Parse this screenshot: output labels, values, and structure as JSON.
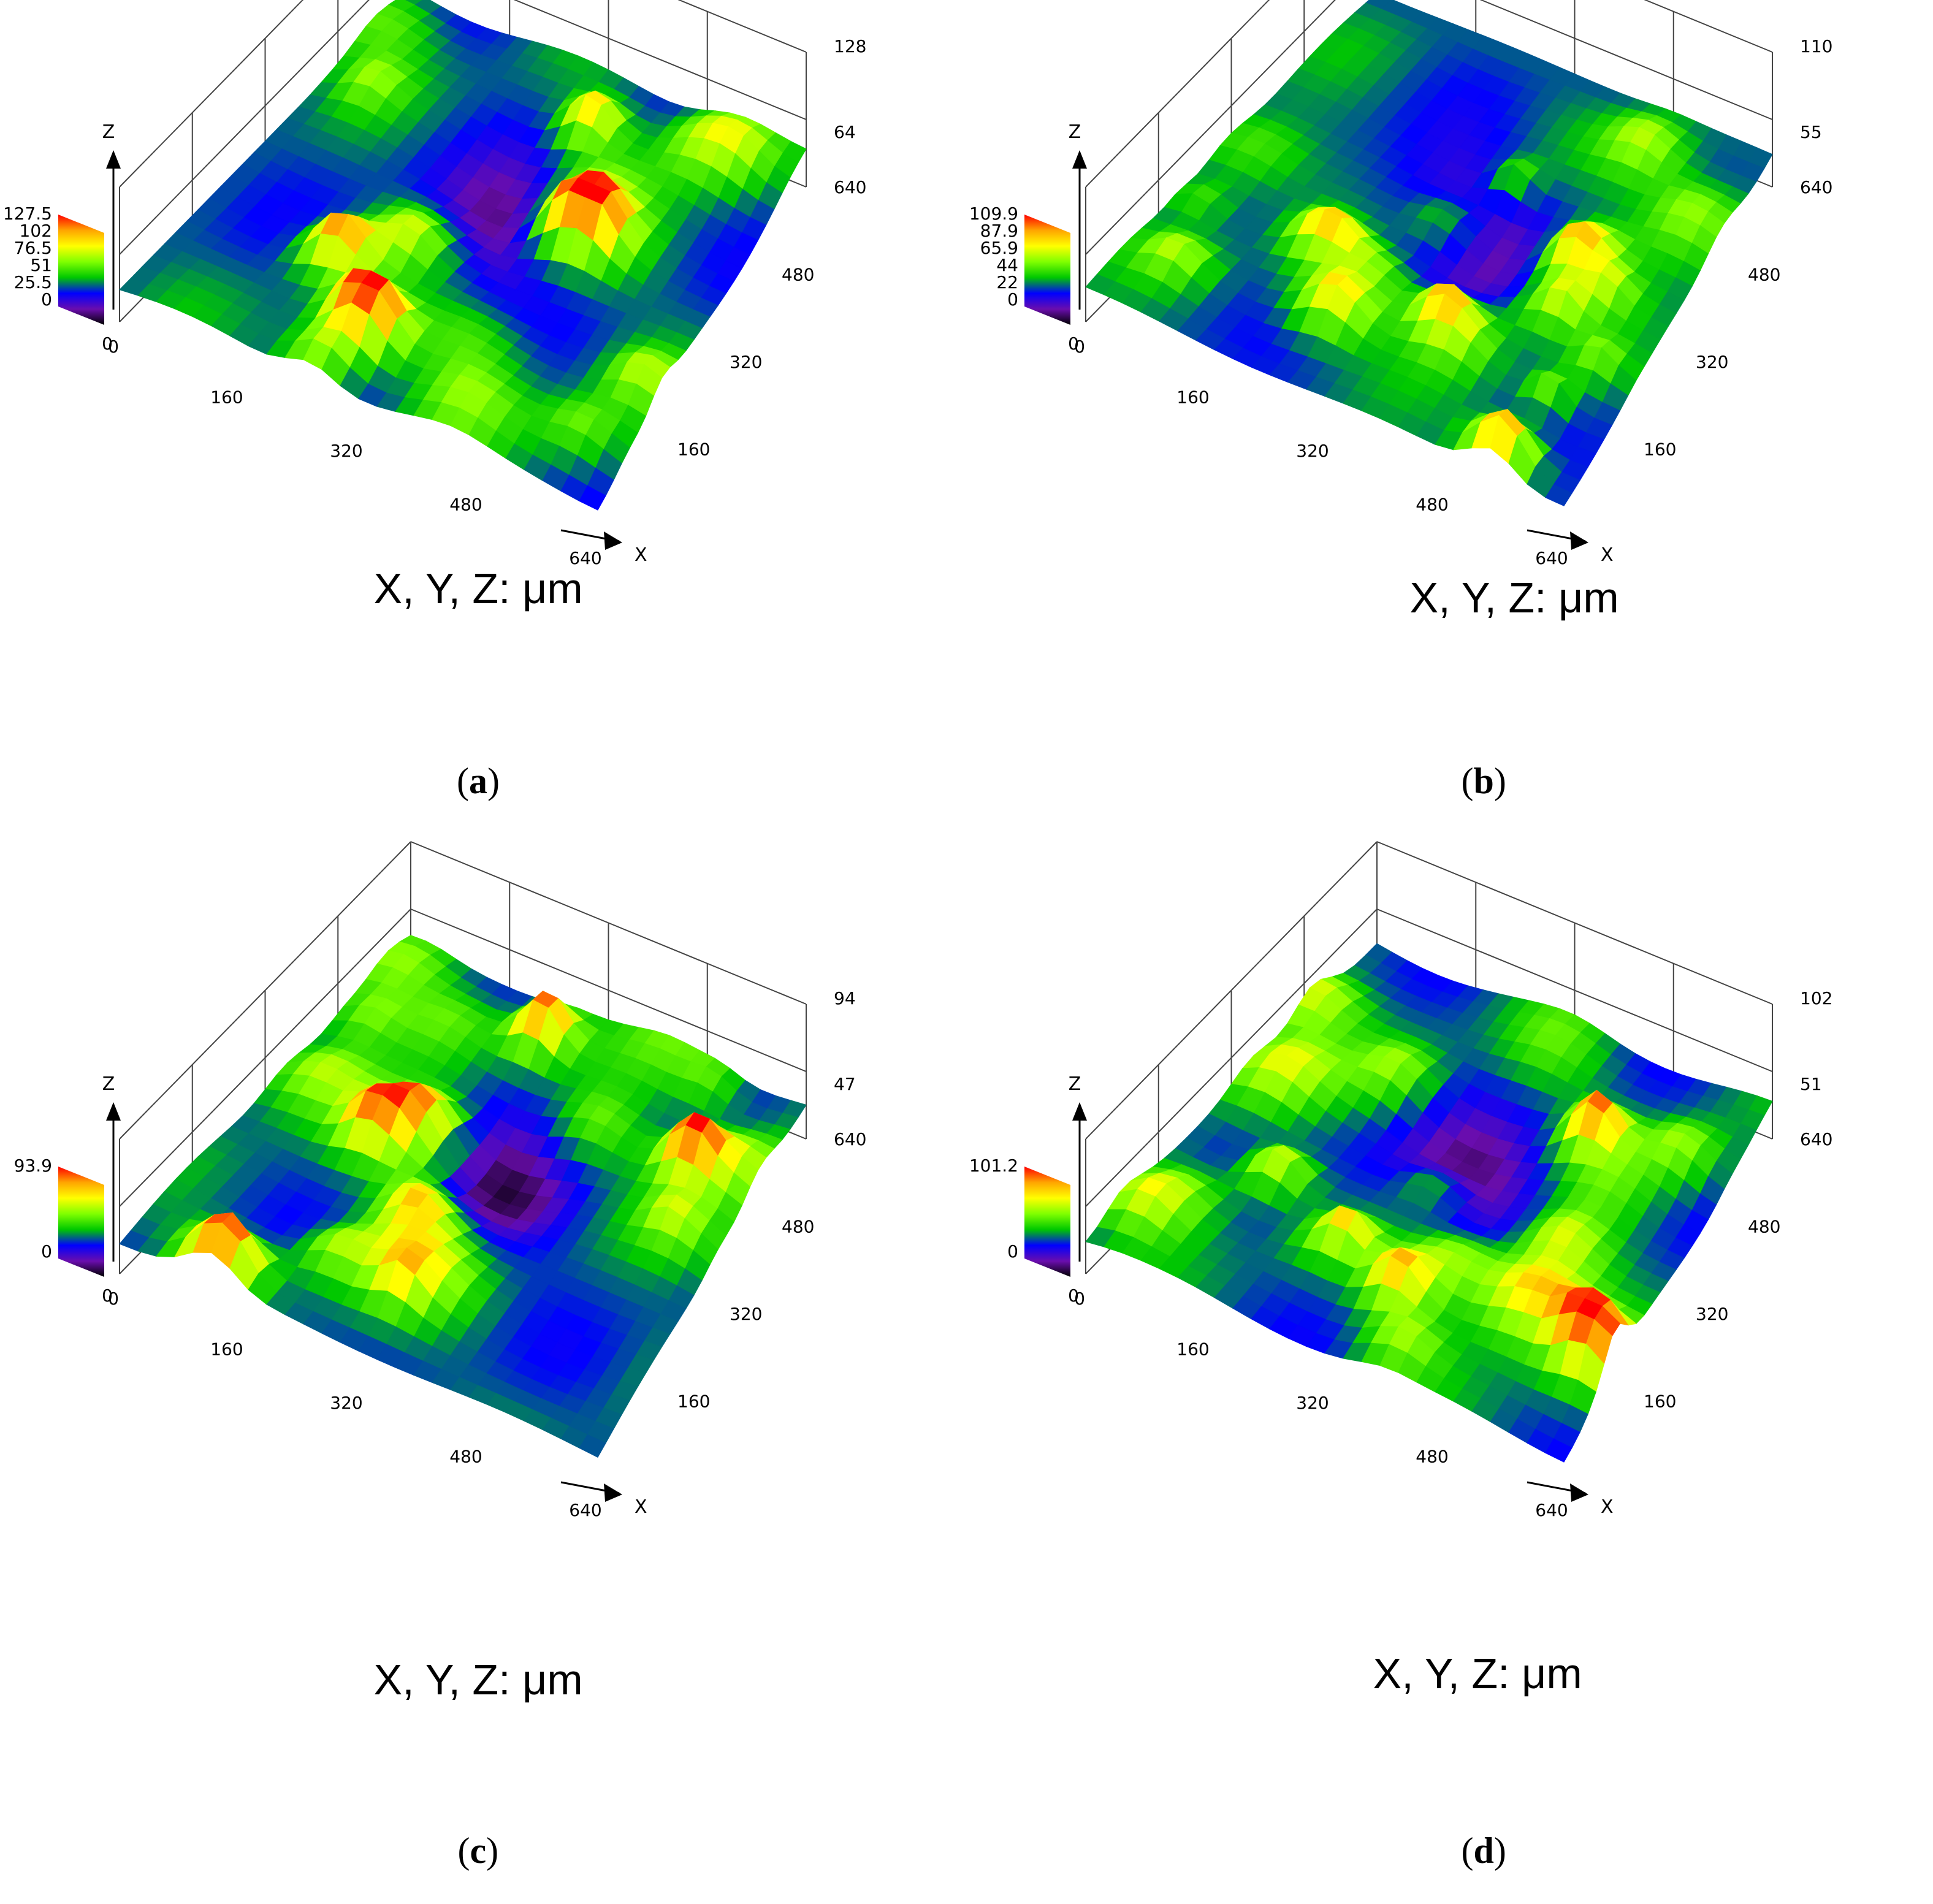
{
  "chart_data": [
    {
      "type": "surface",
      "caption": "a",
      "units_label": "X, Y, Z: μm",
      "x_axis": {
        "label": "X",
        "ticks": [
          "0",
          "160",
          "320",
          "480",
          "640"
        ]
      },
      "y_axis": {
        "ticks": [
          "160",
          "320",
          "480",
          "640"
        ]
      },
      "z_axis": {
        "label": "Z",
        "ticks": [
          "64",
          "128"
        ]
      },
      "colorbar": {
        "labels": [
          "127.5",
          "102",
          "76.5",
          "51",
          "25.5",
          "0"
        ]
      },
      "colors": [
        "#ff0000",
        "#ffa500",
        "#ffff00",
        "#7fff00",
        "#00c800",
        "#0000ff",
        "#6a0dad",
        "#000000"
      ],
      "peaks": [
        [
          0.3,
          0.3,
          0.8
        ],
        [
          0.45,
          0.15,
          0.9
        ],
        [
          0.55,
          0.85,
          0.85
        ],
        [
          0.7,
          0.6,
          0.75
        ]
      ]
    },
    {
      "type": "surface",
      "caption": "b",
      "units_label": "X, Y, Z: μm",
      "x_axis": {
        "label": "X",
        "ticks": [
          "0",
          "160",
          "320",
          "480",
          "640"
        ]
      },
      "y_axis": {
        "ticks": [
          "160",
          "320",
          "480",
          "640"
        ]
      },
      "z_axis": {
        "label": "Z",
        "ticks": [
          "55",
          "110"
        ]
      },
      "colorbar": {
        "labels": [
          "109.9",
          "87.9",
          "65.9",
          "44",
          "22",
          "0"
        ]
      },
      "colors": [
        "#ff0000",
        "#ffa500",
        "#ffff00",
        "#7fff00",
        "#00c800",
        "#0000ff",
        "#6a0dad",
        "#000000"
      ],
      "peaks": [
        [
          0.85,
          0.05,
          1.0
        ],
        [
          0.3,
          0.35,
          0.75
        ],
        [
          0.6,
          0.3,
          0.8
        ],
        [
          0.75,
          0.55,
          0.7
        ]
      ]
    },
    {
      "type": "surface",
      "caption": "c",
      "units_label": "X, Y, Z: μm",
      "x_axis": {
        "label": "X",
        "ticks": [
          "0",
          "160",
          "320",
          "480",
          "640"
        ]
      },
      "y_axis": {
        "ticks": [
          "160",
          "320",
          "480",
          "640"
        ]
      },
      "z_axis": {
        "label": "Z",
        "ticks": [
          "47",
          "94"
        ]
      },
      "colorbar": {
        "labels": [
          "93.9",
          "0"
        ]
      },
      "colors": [
        "#ff0000",
        "#ffa500",
        "#ffff00",
        "#7fff00",
        "#00c800",
        "#0000ff",
        "#6a0dad",
        "#000000"
      ],
      "peaks": [
        [
          0.4,
          0.9,
          1.0
        ],
        [
          0.85,
          0.75,
          1.0
        ],
        [
          0.2,
          0.05,
          0.9
        ],
        [
          0.25,
          0.5,
          0.75
        ]
      ]
    },
    {
      "type": "surface",
      "caption": "d",
      "units_label": "X, Y, Z: μm",
      "x_axis": {
        "label": "X",
        "ticks": [
          "0",
          "160",
          "320",
          "480",
          "640"
        ]
      },
      "y_axis": {
        "ticks": [
          "160",
          "320",
          "480",
          "640"
        ]
      },
      "z_axis": {
        "label": "Z",
        "ticks": [
          "51",
          "102"
        ]
      },
      "colorbar": {
        "labels": [
          "101.2",
          "0"
        ]
      },
      "colors": [
        "#ff0000",
        "#ffa500",
        "#ffff00",
        "#7fff00",
        "#00c800",
        "#0000ff",
        "#6a0dad",
        "#000000"
      ],
      "peaks": [
        [
          0.95,
          0.25,
          1.0
        ],
        [
          0.7,
          0.75,
          0.95
        ],
        [
          0.2,
          0.35,
          0.8
        ],
        [
          0.55,
          0.2,
          0.85
        ]
      ]
    }
  ]
}
